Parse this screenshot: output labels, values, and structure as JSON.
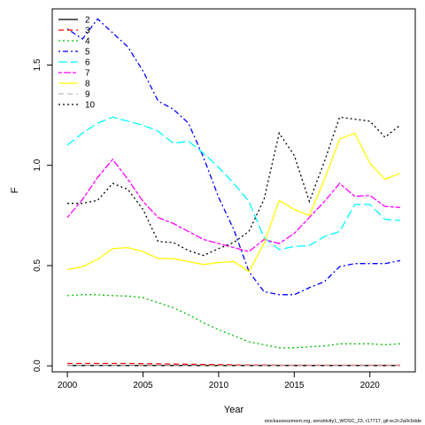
{
  "chart_data": {
    "type": "line",
    "title": "",
    "xlabel": "Year",
    "ylabel": "F",
    "xlim": [
      1999,
      2023
    ],
    "ylim": [
      -0.03,
      1.78
    ],
    "x_ticks": [
      2000,
      2005,
      2010,
      2015,
      2020
    ],
    "y_ticks": [
      0.0,
      0.5,
      1.0,
      1.5
    ],
    "y_tick_labels": [
      "0.0",
      "0.5",
      "1.0",
      "1.5"
    ],
    "grid": false,
    "legend_position": "top-left",
    "x": [
      2000,
      2001,
      2002,
      2003,
      2004,
      2005,
      2006,
      2007,
      2008,
      2009,
      2010,
      2011,
      2012,
      2013,
      2014,
      2015,
      2016,
      2017,
      2018,
      2019,
      2020,
      2021,
      2022
    ],
    "series": [
      {
        "name": "2",
        "color": "#000000",
        "dash": "solid",
        "values": [
          0.002,
          0.002,
          0.002,
          0.002,
          0.002,
          0.002,
          0.002,
          0.002,
          0.002,
          0.002,
          0.002,
          0.002,
          0.002,
          0.002,
          0.002,
          0.002,
          0.002,
          0.002,
          0.002,
          0.002,
          0.002,
          0.002,
          0.002
        ]
      },
      {
        "name": "3",
        "color": "#ff0000",
        "dash": "dashed",
        "values": [
          0.012,
          0.012,
          0.012,
          0.012,
          0.012,
          0.011,
          0.01,
          0.009,
          0.008,
          0.007,
          0.006,
          0.005,
          0.004,
          0.004,
          0.003,
          0.003,
          0.003,
          0.003,
          0.003,
          0.003,
          0.003,
          0.003,
          0.003
        ]
      },
      {
        "name": "4",
        "color": "#00c000",
        "dash": "dotted",
        "values": [
          0.35,
          0.355,
          0.355,
          0.35,
          0.348,
          0.34,
          0.315,
          0.29,
          0.255,
          0.215,
          0.18,
          0.15,
          0.12,
          0.105,
          0.09,
          0.09,
          0.095,
          0.1,
          0.11,
          0.11,
          0.11,
          0.105,
          0.11
        ]
      },
      {
        "name": "5",
        "color": "#0000ff",
        "dash": "dotdash",
        "values": [
          1.68,
          1.63,
          1.73,
          1.66,
          1.59,
          1.47,
          1.32,
          1.28,
          1.21,
          1.04,
          0.84,
          0.68,
          0.47,
          0.37,
          0.355,
          0.355,
          0.39,
          0.42,
          0.495,
          0.51,
          0.51,
          0.51,
          0.525
        ]
      },
      {
        "name": "6",
        "color": "#00ffff",
        "dash": "longdash",
        "values": [
          1.1,
          1.16,
          1.21,
          1.24,
          1.22,
          1.2,
          1.17,
          1.11,
          1.12,
          1.06,
          0.99,
          0.91,
          0.82,
          0.64,
          0.58,
          0.595,
          0.6,
          0.645,
          0.67,
          0.805,
          0.805,
          0.73,
          0.725
        ]
      },
      {
        "name": "7",
        "color": "#ff00ff",
        "dash": "twodash",
        "values": [
          0.74,
          0.83,
          0.94,
          1.03,
          0.93,
          0.82,
          0.74,
          0.71,
          0.67,
          0.63,
          0.61,
          0.59,
          0.57,
          0.63,
          0.61,
          0.66,
          0.74,
          0.82,
          0.91,
          0.845,
          0.85,
          0.795,
          0.79
        ]
      },
      {
        "name": "8",
        "color": "#ffff00",
        "dash": "solid",
        "values": [
          0.48,
          0.495,
          0.53,
          0.585,
          0.59,
          0.57,
          0.535,
          0.535,
          0.52,
          0.505,
          0.515,
          0.52,
          0.47,
          0.61,
          0.825,
          0.78,
          0.75,
          0.93,
          1.13,
          1.16,
          1.01,
          0.93,
          0.96
        ]
      },
      {
        "name": "9",
        "color": "#bebebe",
        "dash": "dashed",
        "values": [
          0.001,
          0.001,
          0.001,
          0.001,
          0.001,
          0.001,
          0.001,
          0.001,
          0.001,
          0.001,
          0.001,
          0.001,
          0.001,
          0.001,
          0.001,
          0.001,
          0.001,
          0.001,
          0.001,
          0.001,
          0.001,
          0.001,
          0.001
        ]
      },
      {
        "name": "10",
        "color": "#000000",
        "dash": "dotted",
        "values": [
          0.81,
          0.81,
          0.825,
          0.91,
          0.88,
          0.78,
          0.62,
          0.615,
          0.575,
          0.55,
          0.585,
          0.615,
          0.67,
          0.83,
          1.16,
          1.05,
          0.82,
          1.02,
          1.24,
          1.23,
          1.22,
          1.14,
          1.2
        ]
      }
    ]
  },
  "footer": {
    "text": "stockassessment.org, sensitivity1_WOSC_23, r17717, git:ec2c2a0c6dde"
  }
}
